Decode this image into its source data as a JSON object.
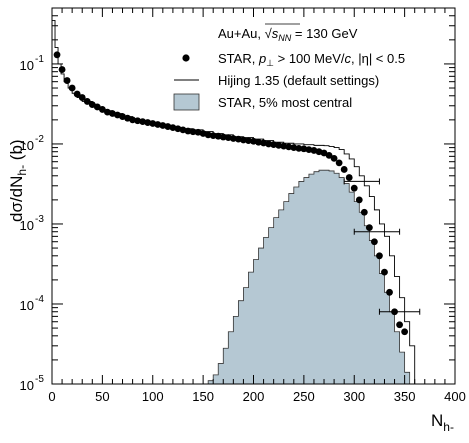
{
  "chart_data": {
    "type": "line",
    "title": "",
    "annotation": "Au+Au, √s_NN = 130 GeV",
    "xlabel": "N_h-",
    "ylabel": "dσ/dN_h- (b)",
    "x_scale": "linear",
    "y_scale": "log",
    "xlim": [
      0,
      400
    ],
    "ylim": [
      1e-05,
      0.5
    ],
    "x_ticks": [
      0,
      50,
      100,
      150,
      200,
      250,
      300,
      350,
      400
    ],
    "x_tick_labels": [
      "0",
      "50",
      "100",
      "150",
      "200",
      "250",
      "300",
      "350",
      "400"
    ],
    "y_ticks": [
      1e-05,
      0.0001,
      0.001,
      0.01,
      0.1
    ],
    "y_tick_labels": [
      {
        "base": "10",
        "exp": "-5"
      },
      {
        "base": "10",
        "exp": "-4"
      },
      {
        "base": "10",
        "exp": "-3"
      },
      {
        "base": "10",
        "exp": "-2"
      },
      {
        "base": "10",
        "exp": "-1"
      }
    ],
    "grid": false,
    "legend_position": "top-right",
    "series": [
      {
        "name": "STAR, p⊥ > 100 MeV/c, |η| < 0.5",
        "kind": "markers",
        "color": "#000000",
        "x": [
          5,
          10,
          15,
          20,
          25,
          30,
          35,
          40,
          45,
          50,
          55,
          60,
          65,
          70,
          75,
          80,
          85,
          90,
          95,
          100,
          105,
          110,
          115,
          120,
          125,
          130,
          135,
          140,
          145,
          150,
          155,
          160,
          165,
          170,
          175,
          180,
          185,
          190,
          195,
          200,
          205,
          210,
          215,
          220,
          225,
          230,
          235,
          240,
          245,
          250,
          255,
          260,
          265,
          270,
          275,
          280,
          285,
          290,
          295,
          300,
          305,
          310,
          315,
          320,
          325,
          330,
          335,
          340,
          345,
          350
        ],
        "y": [
          0.13,
          0.085,
          0.062,
          0.05,
          0.042,
          0.038,
          0.034,
          0.031,
          0.029,
          0.027,
          0.025,
          0.024,
          0.023,
          0.022,
          0.021,
          0.02,
          0.0195,
          0.019,
          0.0185,
          0.018,
          0.0175,
          0.017,
          0.0165,
          0.016,
          0.0155,
          0.015,
          0.0145,
          0.0142,
          0.014,
          0.0135,
          0.013,
          0.0127,
          0.0125,
          0.0122,
          0.012,
          0.0117,
          0.0115,
          0.0112,
          0.011,
          0.0108,
          0.0105,
          0.0103,
          0.01,
          0.0098,
          0.0096,
          0.0094,
          0.0092,
          0.009,
          0.0088,
          0.0087,
          0.0085,
          0.0083,
          0.008,
          0.0077,
          0.0072,
          0.0066,
          0.0058,
          0.0048,
          0.0038,
          0.0028,
          0.002,
          0.0014,
          0.0009,
          0.0006,
          0.0004,
          0.00025,
          0.00014,
          8e-05,
          5.5e-05,
          4.5e-05
        ],
        "xerr": [
          {
            "x": 305,
            "y": 0.0034,
            "lo": 290,
            "hi": 325
          },
          {
            "x": 320,
            "y": 0.0008,
            "lo": 300,
            "hi": 345
          },
          {
            "x": 345,
            "y": 8e-05,
            "lo": 325,
            "hi": 365
          }
        ]
      },
      {
        "name": "Hijing 1.35 (default settings)",
        "kind": "step",
        "color": "#000000",
        "x": [
          0,
          3,
          6,
          9,
          12,
          16,
          20,
          25,
          30,
          40,
          50,
          60,
          70,
          80,
          90,
          100,
          110,
          120,
          130,
          140,
          150,
          160,
          170,
          180,
          190,
          200,
          210,
          220,
          230,
          240,
          250,
          260,
          270,
          275,
          280,
          285,
          290,
          295,
          300,
          305,
          310,
          315,
          320,
          325,
          330,
          335,
          340,
          345,
          350,
          355,
          360
        ],
        "y": [
          0.35,
          0.16,
          0.1,
          0.075,
          0.06,
          0.05,
          0.043,
          0.038,
          0.034,
          0.029,
          0.026,
          0.024,
          0.022,
          0.02,
          0.019,
          0.018,
          0.017,
          0.016,
          0.0155,
          0.015,
          0.0143,
          0.0135,
          0.013,
          0.0123,
          0.012,
          0.0115,
          0.011,
          0.0105,
          0.0102,
          0.01,
          0.0098,
          0.0096,
          0.0095,
          0.0093,
          0.009,
          0.0085,
          0.0075,
          0.0065,
          0.0052,
          0.004,
          0.003,
          0.0022,
          0.0015,
          0.001,
          0.0007,
          0.0004,
          0.00022,
          0.00012,
          6e-05,
          3e-05,
          1e-05
        ]
      },
      {
        "name": "STAR, 5% most central",
        "kind": "histogram",
        "color": "#b5c8d3",
        "x": [
          150,
          155,
          160,
          165,
          170,
          175,
          180,
          185,
          190,
          195,
          200,
          205,
          210,
          215,
          220,
          225,
          230,
          235,
          240,
          245,
          250,
          255,
          260,
          265,
          270,
          275,
          280,
          285,
          290,
          295,
          300,
          305,
          310,
          315,
          320,
          325,
          330,
          335,
          340,
          345,
          350,
          355
        ],
        "y": [
          1e-05,
          1.1e-05,
          1.3e-05,
          1.8e-05,
          2.8e-05,
          4.5e-05,
          7e-05,
          0.00011,
          0.00016,
          0.00025,
          0.00036,
          0.0005,
          0.00068,
          0.0009,
          0.0012,
          0.0015,
          0.0019,
          0.0024,
          0.0029,
          0.0034,
          0.0038,
          0.0042,
          0.0045,
          0.0047,
          0.0047,
          0.0046,
          0.0043,
          0.0038,
          0.0032,
          0.0025,
          0.0019,
          0.0014,
          0.00095,
          0.00062,
          0.0004,
          0.00024,
          0.00014,
          8e-05,
          4.5e-05,
          2.5e-05,
          1.4e-05,
          1e-05
        ]
      }
    ],
    "legend": [
      {
        "symbol": "dot",
        "label_parts": [
          "STAR, ",
          "p",
          "⊥",
          " > 100 MeV/",
          "c",
          ", |η| < 0.5"
        ]
      },
      {
        "symbol": "line",
        "label": "Hijing 1.35 (default settings)"
      },
      {
        "symbol": "box",
        "label": "STAR, 5% most central"
      }
    ]
  }
}
